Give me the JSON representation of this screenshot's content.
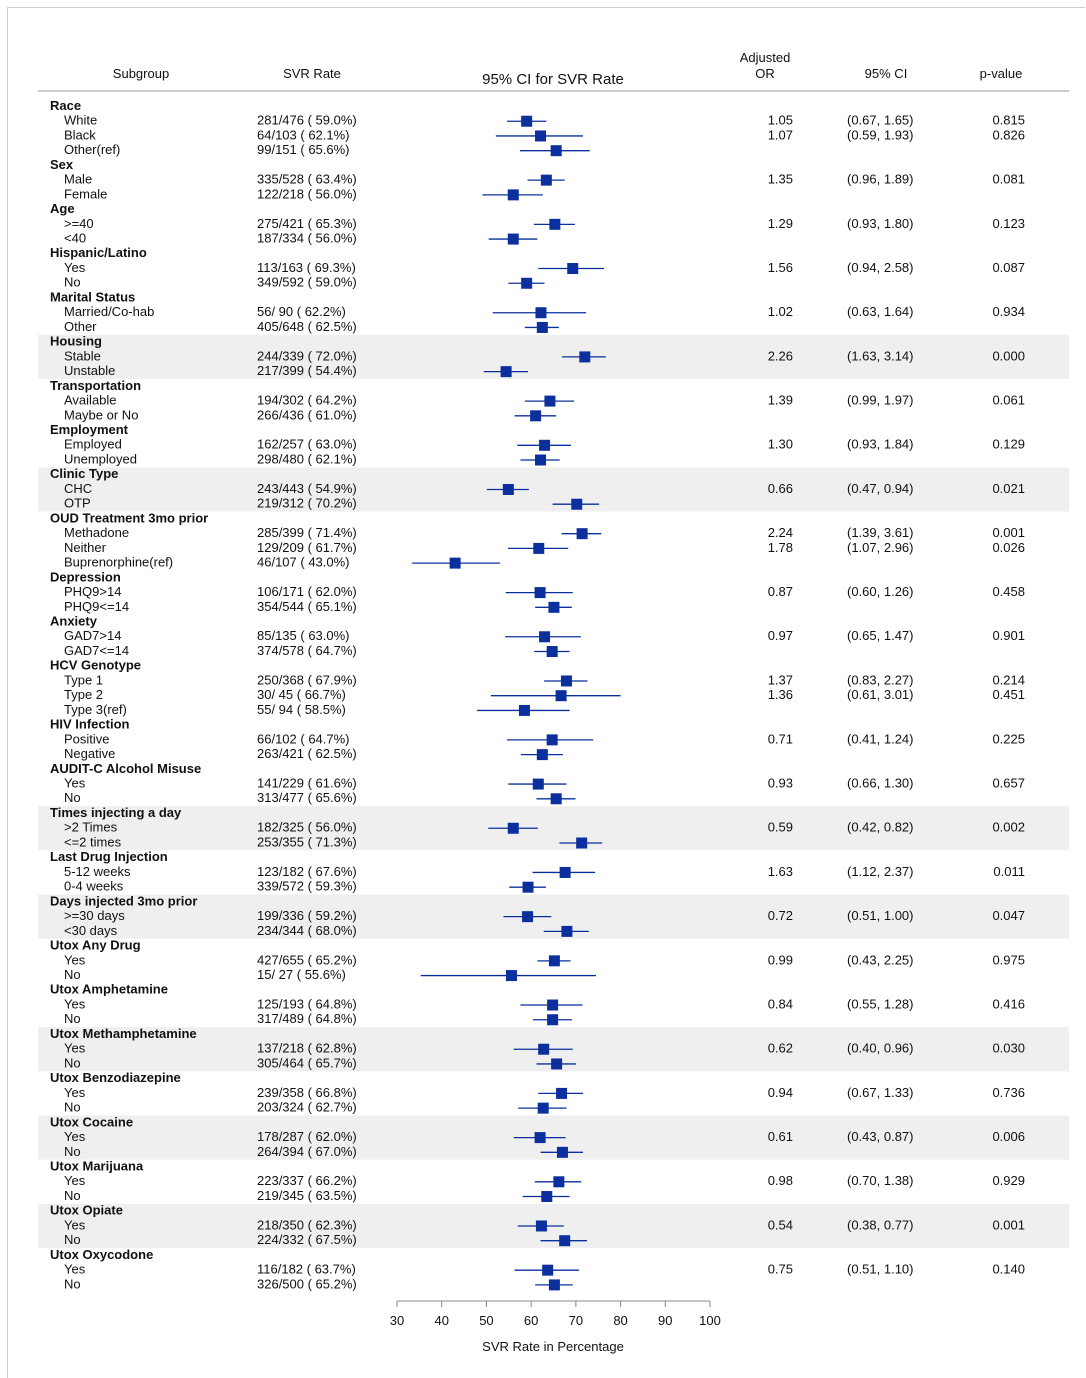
{
  "headers": {
    "subgroup": "Subgroup",
    "svr_rate": "SVR Rate",
    "ci_plot": "95% CI for SVR Rate",
    "or_line1": "Adjusted",
    "or_line2": "OR",
    "ci": "95% CI",
    "pvalue": "p-value"
  },
  "colors": {
    "marker": "#0b2f9c",
    "band": "#efefef",
    "axis": "#888888"
  },
  "chart_data": {
    "type": "forest",
    "xlabel": "SVR Rate in Percentage",
    "xlim": [
      30,
      100
    ],
    "xticks": [
      30,
      40,
      50,
      60,
      70,
      80,
      90,
      100
    ],
    "groups": [
      {
        "name": "Race",
        "shaded": false,
        "rows": [
          {
            "label": "White",
            "rate": "281/476 ( 59.0%)",
            "est": 59.0,
            "lo": 54.6,
            "hi": 63.4,
            "or": "1.05",
            "ci": "(0.67, 1.65)",
            "p": "0.815"
          },
          {
            "label": "Black",
            "rate": "64/103 ( 62.1%)",
            "est": 62.1,
            "lo": 52.1,
            "hi": 71.6,
            "or": "1.07",
            "ci": "(0.59, 1.93)",
            "p": "0.826"
          },
          {
            "label": "Other(ref)",
            "rate": "99/151 ( 65.6%)",
            "est": 65.6,
            "lo": 57.5,
            "hi": 73.1,
            "or": "",
            "ci": "",
            "p": ""
          }
        ]
      },
      {
        "name": "Sex",
        "shaded": false,
        "rows": [
          {
            "label": "Male",
            "rate": "335/528 ( 63.4%)",
            "est": 63.4,
            "lo": 59.2,
            "hi": 67.5,
            "or": "1.35",
            "ci": "(0.96, 1.89)",
            "p": "0.081"
          },
          {
            "label": "Female",
            "rate": "122/218 ( 56.0%)",
            "est": 56.0,
            "lo": 49.1,
            "hi": 62.6,
            "or": "",
            "ci": "",
            "p": ""
          }
        ]
      },
      {
        "name": "Age",
        "shaded": false,
        "rows": [
          {
            "label": ">=40",
            "rate": "275/421 ( 65.3%)",
            "est": 65.3,
            "lo": 60.6,
            "hi": 69.8,
            "or": "1.29",
            "ci": "(0.93, 1.80)",
            "p": "0.123"
          },
          {
            "label": "<40",
            "rate": "187/334 ( 56.0%)",
            "est": 56.0,
            "lo": 50.5,
            "hi": 61.4,
            "or": "",
            "ci": "",
            "p": ""
          }
        ]
      },
      {
        "name": "Hispanic/Latino",
        "shaded": false,
        "rows": [
          {
            "label": "Yes",
            "rate": "113/163 ( 69.3%)",
            "est": 69.3,
            "lo": 61.6,
            "hi": 76.3,
            "or": "1.56",
            "ci": "(0.94, 2.58)",
            "p": "0.087"
          },
          {
            "label": "No",
            "rate": "349/592 ( 59.0%)",
            "est": 59.0,
            "lo": 54.9,
            "hi": 63.0,
            "or": "",
            "ci": "",
            "p": ""
          }
        ]
      },
      {
        "name": "Marital Status",
        "shaded": false,
        "rows": [
          {
            "label": "Married/Co-hab",
            "rate": "56/ 90 ( 62.2%)",
            "est": 62.2,
            "lo": 51.4,
            "hi": 72.3,
            "or": "1.02",
            "ci": "(0.63, 1.64)",
            "p": "0.934"
          },
          {
            "label": "Other",
            "rate": "405/648 ( 62.5%)",
            "est": 62.5,
            "lo": 58.6,
            "hi": 66.2,
            "or": "",
            "ci": "",
            "p": ""
          }
        ]
      },
      {
        "name": "Housing",
        "shaded": true,
        "rows": [
          {
            "label": "Stable",
            "rate": "244/339 ( 72.0%)",
            "est": 72.0,
            "lo": 66.9,
            "hi": 76.7,
            "or": "2.26",
            "ci": "(1.63, 3.14)",
            "p": "0.000"
          },
          {
            "label": "Unstable",
            "rate": "217/399 ( 54.4%)",
            "est": 54.4,
            "lo": 49.4,
            "hi": 59.3,
            "or": "",
            "ci": "",
            "p": ""
          }
        ]
      },
      {
        "name": "Transportation",
        "shaded": false,
        "rows": [
          {
            "label": "Available",
            "rate": "194/302 ( 64.2%)",
            "est": 64.2,
            "lo": 58.6,
            "hi": 69.6,
            "or": "1.39",
            "ci": "(0.99, 1.97)",
            "p": "0.061"
          },
          {
            "label": "Maybe or No",
            "rate": "266/436 ( 61.0%)",
            "est": 61.0,
            "lo": 56.3,
            "hi": 65.6,
            "or": "",
            "ci": "",
            "p": ""
          }
        ]
      },
      {
        "name": "Employment",
        "shaded": false,
        "rows": [
          {
            "label": "Employed",
            "rate": "162/257 ( 63.0%)",
            "est": 63.0,
            "lo": 56.9,
            "hi": 68.9,
            "or": "1.30",
            "ci": "(0.93, 1.84)",
            "p": "0.129"
          },
          {
            "label": "Unemployed",
            "rate": "298/480 ( 62.1%)",
            "est": 62.1,
            "lo": 57.6,
            "hi": 66.4,
            "or": "",
            "ci": "",
            "p": ""
          }
        ]
      },
      {
        "name": "Clinic Type",
        "shaded": true,
        "rows": [
          {
            "label": "CHC",
            "rate": "243/443 ( 54.9%)",
            "est": 54.9,
            "lo": 50.1,
            "hi": 59.5,
            "or": "0.66",
            "ci": "(0.47, 0.94)",
            "p": "0.021"
          },
          {
            "label": "OTP",
            "rate": "219/312 ( 70.2%)",
            "est": 70.2,
            "lo": 64.8,
            "hi": 75.2,
            "or": "",
            "ci": "",
            "p": ""
          }
        ]
      },
      {
        "name": "OUD Treatment 3mo prior",
        "shaded": false,
        "rows": [
          {
            "label": "Methadone",
            "rate": "285/399 ( 71.4%)",
            "est": 71.4,
            "lo": 66.8,
            "hi": 75.7,
            "or": "2.24",
            "ci": "(1.39, 3.61)",
            "p": "0.001"
          },
          {
            "label": "Neither",
            "rate": "129/209 ( 61.7%)",
            "est": 61.7,
            "lo": 54.8,
            "hi": 68.3,
            "or": "1.78",
            "ci": "(1.07, 2.96)",
            "p": "0.026"
          },
          {
            "label": "Buprenorphine(ref)",
            "rate": "46/107 ( 43.0%)",
            "est": 43.0,
            "lo": 33.4,
            "hi": 53.0,
            "or": "",
            "ci": "",
            "p": ""
          }
        ]
      },
      {
        "name": "Depression",
        "shaded": false,
        "rows": [
          {
            "label": "PHQ9>14",
            "rate": "106/171 ( 62.0%)",
            "est": 62.0,
            "lo": 54.3,
            "hi": 69.3,
            "or": "0.87",
            "ci": "(0.60, 1.26)",
            "p": "0.458"
          },
          {
            "label": "PHQ9<=14",
            "rate": "354/544 ( 65.1%)",
            "est": 65.1,
            "lo": 60.9,
            "hi": 69.1,
            "or": "",
            "ci": "",
            "p": ""
          }
        ]
      },
      {
        "name": "Anxiety",
        "shaded": false,
        "rows": [
          {
            "label": "GAD7>14",
            "rate": "85/135 ( 63.0%)",
            "est": 63.0,
            "lo": 54.2,
            "hi": 71.1,
            "or": "0.97",
            "ci": "(0.65, 1.47)",
            "p": "0.901"
          },
          {
            "label": "GAD7<=14",
            "rate": "374/578 ( 64.7%)",
            "est": 64.7,
            "lo": 60.7,
            "hi": 68.6,
            "or": "",
            "ci": "",
            "p": ""
          }
        ]
      },
      {
        "name": "HCV Genotype",
        "shaded": false,
        "rows": [
          {
            "label": "Type 1",
            "rate": "250/368 ( 67.9%)",
            "est": 67.9,
            "lo": 62.9,
            "hi": 72.6,
            "or": "1.37",
            "ci": "(0.83, 2.27)",
            "p": "0.214"
          },
          {
            "label": "Type 2",
            "rate": "30/ 45 ( 66.7%)",
            "est": 66.7,
            "lo": 51.0,
            "hi": 80.0,
            "or": "1.36",
            "ci": "(0.61, 3.01)",
            "p": "0.451"
          },
          {
            "label": "Type 3(ref)",
            "rate": "55/ 94 ( 58.5%)",
            "est": 58.5,
            "lo": 47.9,
            "hi": 68.6,
            "or": "",
            "ci": "",
            "p": ""
          }
        ]
      },
      {
        "name": "HIV Infection",
        "shaded": false,
        "rows": [
          {
            "label": "Positive",
            "rate": "66/102 ( 64.7%)",
            "est": 64.7,
            "lo": 54.6,
            "hi": 73.9,
            "or": "0.71",
            "ci": "(0.41, 1.24)",
            "p": "0.225"
          },
          {
            "label": "Negative",
            "rate": "263/421 ( 62.5%)",
            "est": 62.5,
            "lo": 57.7,
            "hi": 67.1,
            "or": "",
            "ci": "",
            "p": ""
          }
        ]
      },
      {
        "name": "AUDIT-C Alcohol Misuse",
        "shaded": false,
        "rows": [
          {
            "label": "Yes",
            "rate": "141/229 ( 61.6%)",
            "est": 61.6,
            "lo": 54.9,
            "hi": 67.9,
            "or": "0.93",
            "ci": "(0.66, 1.30)",
            "p": "0.657"
          },
          {
            "label": "No",
            "rate": "313/477 ( 65.6%)",
            "est": 65.6,
            "lo": 61.2,
            "hi": 69.9,
            "or": "",
            "ci": "",
            "p": ""
          }
        ]
      },
      {
        "name": "Times injecting a day",
        "shaded": true,
        "rows": [
          {
            "label": ">2 Times",
            "rate": "182/325 ( 56.0%)",
            "est": 56.0,
            "lo": 50.4,
            "hi": 61.5,
            "or": "0.59",
            "ci": "(0.42, 0.82)",
            "p": "0.002"
          },
          {
            "label": "<=2 times",
            "rate": "253/355 ( 71.3%)",
            "est": 71.3,
            "lo": 66.3,
            "hi": 75.9,
            "or": "",
            "ci": "",
            "p": ""
          }
        ]
      },
      {
        "name": "Last Drug Injection",
        "shaded": false,
        "rows": [
          {
            "label": "5-12 weeks",
            "rate": "123/182 ( 67.6%)",
            "est": 67.6,
            "lo": 60.3,
            "hi": 74.3,
            "or": "1.63",
            "ci": "(1.12, 2.37)",
            "p": "0.011"
          },
          {
            "label": "0-4 weeks",
            "rate": "339/572 ( 59.3%)",
            "est": 59.3,
            "lo": 55.1,
            "hi": 63.3,
            "or": "",
            "ci": "",
            "p": ""
          }
        ]
      },
      {
        "name": "Days injected 3mo prior",
        "shaded": true,
        "rows": [
          {
            "label": ">=30 days",
            "rate": "199/336 ( 59.2%)",
            "est": 59.2,
            "lo": 53.8,
            "hi": 64.5,
            "or": "0.72",
            "ci": "(0.51, 1.00)",
            "p": "0.047"
          },
          {
            "label": "<30 days",
            "rate": "234/344 ( 68.0%)",
            "est": 68.0,
            "lo": 62.8,
            "hi": 72.9,
            "or": "",
            "ci": "",
            "p": ""
          }
        ]
      },
      {
        "name": "Utox Any Drug",
        "shaded": false,
        "rows": [
          {
            "label": "Yes",
            "rate": "427/655 ( 65.2%)",
            "est": 65.2,
            "lo": 61.4,
            "hi": 68.8,
            "or": "0.99",
            "ci": "(0.43, 2.25)",
            "p": "0.975"
          },
          {
            "label": "No",
            "rate": "15/ 27 ( 55.6%)",
            "est": 55.6,
            "lo": 35.3,
            "hi": 74.5,
            "or": "",
            "ci": "",
            "p": ""
          }
        ]
      },
      {
        "name": "Utox Amphetamine",
        "shaded": false,
        "rows": [
          {
            "label": "Yes",
            "rate": "125/193 ( 64.8%)",
            "est": 64.8,
            "lo": 57.6,
            "hi": 71.5,
            "or": "0.84",
            "ci": "(0.55, 1.28)",
            "p": "0.416"
          },
          {
            "label": "No",
            "rate": "317/489 ( 64.8%)",
            "est": 64.8,
            "lo": 60.4,
            "hi": 69.1,
            "or": "",
            "ci": "",
            "p": ""
          }
        ]
      },
      {
        "name": "Utox Methamphetamine",
        "shaded": true,
        "rows": [
          {
            "label": "Yes",
            "rate": "137/218 ( 62.8%)",
            "est": 62.8,
            "lo": 56.1,
            "hi": 69.3,
            "or": "0.62",
            "ci": "(0.40, 0.96)",
            "p": "0.030"
          },
          {
            "label": "No",
            "rate": "305/464 ( 65.7%)",
            "est": 65.7,
            "lo": 61.2,
            "hi": 70.0,
            "or": "",
            "ci": "",
            "p": ""
          }
        ]
      },
      {
        "name": "Utox Benzodiazepine",
        "shaded": false,
        "rows": [
          {
            "label": "Yes",
            "rate": "239/358 ( 66.8%)",
            "est": 66.8,
            "lo": 61.6,
            "hi": 71.6,
            "or": "0.94",
            "ci": "(0.67, 1.33)",
            "p": "0.736"
          },
          {
            "label": "No",
            "rate": "203/324 ( 62.7%)",
            "est": 62.7,
            "lo": 57.1,
            "hi": 67.9,
            "or": "",
            "ci": "",
            "p": ""
          }
        ]
      },
      {
        "name": "Utox Cocaine",
        "shaded": true,
        "rows": [
          {
            "label": "Yes",
            "rate": "178/287 ( 62.0%)",
            "est": 62.0,
            "lo": 56.1,
            "hi": 67.7,
            "or": "0.61",
            "ci": "(0.43, 0.87)",
            "p": "0.006"
          },
          {
            "label": "No",
            "rate": "264/394 ( 67.0%)",
            "est": 67.0,
            "lo": 62.1,
            "hi": 71.6,
            "or": "",
            "ci": "",
            "p": ""
          }
        ]
      },
      {
        "name": "Utox Marijuana",
        "shaded": false,
        "rows": [
          {
            "label": "Yes",
            "rate": "223/337 ( 66.2%)",
            "est": 66.2,
            "lo": 60.8,
            "hi": 71.2,
            "or": "0.98",
            "ci": "(0.70, 1.38)",
            "p": "0.929"
          },
          {
            "label": "No",
            "rate": "219/345 ( 63.5%)",
            "est": 63.5,
            "lo": 58.1,
            "hi": 68.6,
            "or": "",
            "ci": "",
            "p": ""
          }
        ]
      },
      {
        "name": "Utox Opiate",
        "shaded": true,
        "rows": [
          {
            "label": "Yes",
            "rate": "218/350 ( 62.3%)",
            "est": 62.3,
            "lo": 57.0,
            "hi": 67.3,
            "or": "0.54",
            "ci": "(0.38, 0.77)",
            "p": "0.001"
          },
          {
            "label": "No",
            "rate": "224/332 ( 67.5%)",
            "est": 67.5,
            "lo": 62.1,
            "hi": 72.5,
            "or": "",
            "ci": "",
            "p": ""
          }
        ]
      },
      {
        "name": "Utox Oxycodone",
        "shaded": false,
        "rows": [
          {
            "label": "Yes",
            "rate": "116/182 ( 63.7%)",
            "est": 63.7,
            "lo": 56.3,
            "hi": 70.7,
            "or": "0.75",
            "ci": "(0.51, 1.10)",
            "p": "0.140"
          },
          {
            "label": "No",
            "rate": "326/500 ( 65.2%)",
            "est": 65.2,
            "lo": 60.9,
            "hi": 69.3,
            "or": "",
            "ci": "",
            "p": ""
          }
        ]
      }
    ]
  }
}
